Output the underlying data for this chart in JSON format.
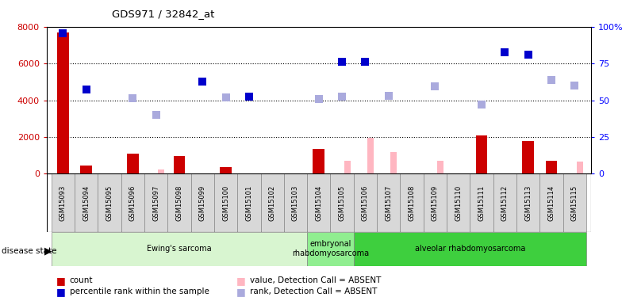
{
  "title": "GDS971 / 32842_at",
  "samples": [
    "GSM15093",
    "GSM15094",
    "GSM15095",
    "GSM15096",
    "GSM15097",
    "GSM15098",
    "GSM15099",
    "GSM15100",
    "GSM15101",
    "GSM15102",
    "GSM15103",
    "GSM15104",
    "GSM15105",
    "GSM15106",
    "GSM15107",
    "GSM15108",
    "GSM15109",
    "GSM15110",
    "GSM15111",
    "GSM15112",
    "GSM15113",
    "GSM15114",
    "GSM15115"
  ],
  "count": [
    7700,
    450,
    0,
    1100,
    0,
    950,
    0,
    375,
    0,
    0,
    0,
    1350,
    0,
    0,
    0,
    0,
    0,
    0,
    2100,
    0,
    1800,
    700,
    0
  ],
  "value_absent": [
    null,
    null,
    null,
    null,
    250,
    null,
    null,
    null,
    null,
    null,
    null,
    null,
    700,
    1950,
    1200,
    null,
    700,
    null,
    null,
    null,
    null,
    null,
    650
  ],
  "rank_absent": [
    null,
    null,
    null,
    4100,
    3200,
    null,
    null,
    4150,
    null,
    null,
    null,
    4050,
    4200,
    null,
    4250,
    null,
    4750,
    null,
    3750,
    null,
    null,
    5100,
    4800
  ],
  "percentile_dark": [
    7650,
    4600,
    null,
    null,
    null,
    null,
    5000,
    null,
    4200,
    null,
    null,
    null,
    6100,
    6100,
    null,
    null,
    null,
    null,
    null,
    null,
    null,
    null,
    null
  ],
  "percentile_dark2": [
    null,
    null,
    null,
    null,
    null,
    null,
    null,
    null,
    null,
    null,
    null,
    null,
    null,
    null,
    null,
    null,
    null,
    null,
    null,
    6600,
    6500,
    null,
    null
  ],
  "groups": [
    {
      "label": "Ewing's sarcoma",
      "start": 0,
      "end": 11,
      "color": "#d8f5d0"
    },
    {
      "label": "embryonal\nrhabdomyosarcoma",
      "start": 11,
      "end": 13,
      "color": "#90ee90"
    },
    {
      "label": "alveolar rhabdomyosarcoma",
      "start": 13,
      "end": 23,
      "color": "#3ecf3e"
    }
  ],
  "ylim_left": [
    0,
    8000
  ],
  "ylim_right": [
    0,
    100
  ],
  "yticks_left": [
    0,
    2000,
    4000,
    6000,
    8000
  ],
  "yticks_right": [
    0,
    25,
    50,
    75,
    100
  ],
  "count_color": "#cc0000",
  "absent_value_color": "#ffb6c1",
  "absent_rank_color": "#aaaadd",
  "percentile_dark_color": "#0000cc",
  "legend_items": [
    {
      "label": "count",
      "color": "#cc0000"
    },
    {
      "label": "percentile rank within the sample",
      "color": "#0000cc"
    },
    {
      "label": "value, Detection Call = ABSENT",
      "color": "#ffb6c1"
    },
    {
      "label": "rank, Detection Call = ABSENT",
      "color": "#aaaadd"
    }
  ]
}
